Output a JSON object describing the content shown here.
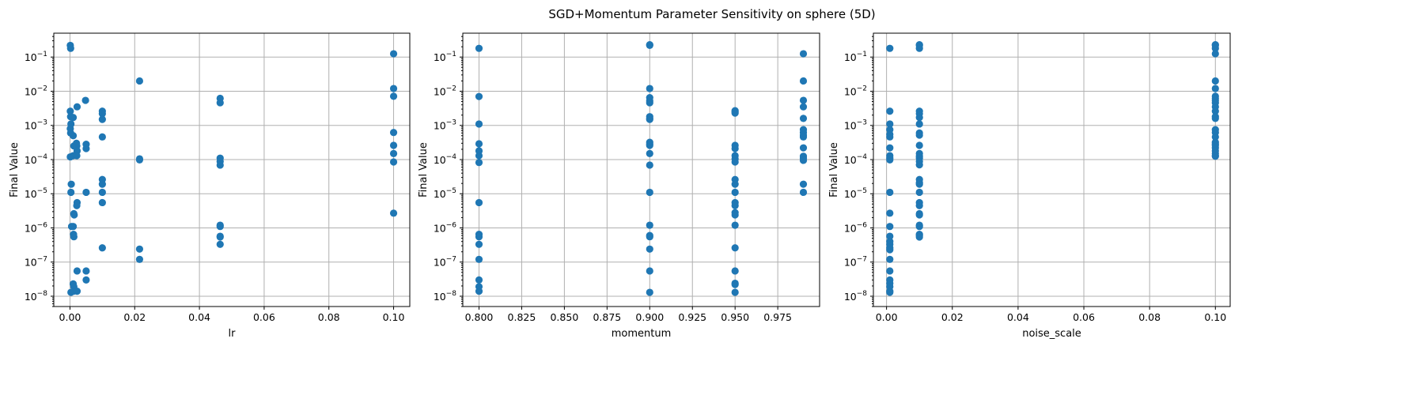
{
  "figure": {
    "title": "SGD+Momentum Parameter Sensitivity on sphere (5D)",
    "point_color": "#1f77b4",
    "grid": true
  },
  "chart_data": [
    {
      "type": "scatter",
      "xlabel": "lr",
      "ylabel": "Final Value",
      "yscale": "log",
      "xlim": [
        -0.005,
        0.105
      ],
      "ylim": [
        5e-09,
        0.5
      ],
      "xticks": [
        0.0,
        0.02,
        0.04,
        0.06,
        0.08,
        0.1
      ],
      "xtick_labels": [
        "0.00",
        "0.02",
        "0.04",
        "0.06",
        "0.08",
        "0.10"
      ],
      "yticks": [
        1e-08,
        1e-07,
        1e-06,
        1e-05,
        0.0001,
        0.001,
        0.01,
        0.1
      ],
      "ytick_exponents": [
        "-8",
        "-7",
        "-6",
        "-5",
        "-4",
        "-3",
        "-2",
        "-1"
      ],
      "ytick_base": "10",
      "points": [
        [
          0.0001,
          0.22
        ],
        [
          0.0002,
          0.18
        ],
        [
          0.0001,
          0.0026
        ],
        [
          0.0002,
          0.0018
        ],
        [
          0.0003,
          0.0011
        ],
        [
          0.0001,
          0.0008
        ],
        [
          0.0002,
          0.0006
        ],
        [
          0.0001,
          0.00012
        ],
        [
          0.0004,
          1.9e-05
        ],
        [
          0.0003,
          1.1e-05
        ],
        [
          0.0005,
          1.1e-06
        ],
        [
          0.0003,
          1.3e-08
        ],
        [
          0.001,
          0.0017
        ],
        [
          0.001,
          0.0005
        ],
        [
          0.0012,
          0.00025
        ],
        [
          0.001,
          0.00013
        ],
        [
          0.0012,
          2.6e-06
        ],
        [
          0.0013,
          2.4e-06
        ],
        [
          0.001,
          1.1e-06
        ],
        [
          0.0011,
          6.5e-07
        ],
        [
          0.0012,
          5.5e-07
        ],
        [
          0.001,
          2.3e-08
        ],
        [
          0.0012,
          1.9e-08
        ],
        [
          0.0011,
          1.4e-08
        ],
        [
          0.0022,
          0.0035
        ],
        [
          0.002,
          0.0003
        ],
        [
          0.0021,
          0.00025
        ],
        [
          0.0022,
          0.00018
        ],
        [
          0.0021,
          0.00013
        ],
        [
          0.0022,
          5.5e-06
        ],
        [
          0.0021,
          4.5e-06
        ],
        [
          0.0022,
          5.5e-08
        ],
        [
          0.0022,
          1.4e-08
        ],
        [
          0.0048,
          0.0054
        ],
        [
          0.005,
          0.00028
        ],
        [
          0.005,
          0.00021
        ],
        [
          0.005,
          1.1e-05
        ],
        [
          0.005,
          5.5e-08
        ],
        [
          0.005,
          3e-08
        ],
        [
          0.01,
          0.0026
        ],
        [
          0.01,
          0.0022
        ],
        [
          0.01,
          0.0015
        ],
        [
          0.01,
          0.00046
        ],
        [
          0.01,
          2.6e-05
        ],
        [
          0.01,
          1.9e-05
        ],
        [
          0.01,
          1.1e-05
        ],
        [
          0.01,
          5.5e-06
        ],
        [
          0.01,
          2.6e-07
        ],
        [
          0.0215,
          0.02
        ],
        [
          0.0215,
          0.000105
        ],
        [
          0.0215,
          9.8e-05
        ],
        [
          0.0215,
          2.4e-07
        ],
        [
          0.0215,
          1.2e-07
        ],
        [
          0.0464,
          0.0062
        ],
        [
          0.0464,
          0.0046
        ],
        [
          0.0464,
          0.00011
        ],
        [
          0.0464,
          8.8e-05
        ],
        [
          0.0464,
          6.9e-05
        ],
        [
          0.0464,
          1.2e-06
        ],
        [
          0.0464,
          1.1e-06
        ],
        [
          0.0464,
          5.7e-07
        ],
        [
          0.0464,
          5.4e-07
        ],
        [
          0.0464,
          3.3e-07
        ],
        [
          0.1,
          0.125
        ],
        [
          0.1,
          0.012
        ],
        [
          0.1,
          0.0071
        ],
        [
          0.1,
          0.00062
        ],
        [
          0.1,
          0.00026
        ],
        [
          0.1,
          0.00015
        ],
        [
          0.1,
          8.5e-05
        ],
        [
          0.1,
          2.7e-06
        ]
      ]
    },
    {
      "type": "scatter",
      "xlabel": "momentum",
      "ylabel": "Final Value",
      "yscale": "log",
      "xlim": [
        0.7905,
        0.9995
      ],
      "ylim": [
        5e-09,
        0.5
      ],
      "xticks": [
        0.8,
        0.825,
        0.85,
        0.875,
        0.9,
        0.925,
        0.95,
        0.975
      ],
      "xtick_labels": [
        "0.800",
        "0.825",
        "0.850",
        "0.875",
        "0.900",
        "0.925",
        "0.950",
        "0.975"
      ],
      "yticks": [
        1e-08,
        1e-07,
        1e-06,
        1e-05,
        0.0001,
        0.001,
        0.01,
        0.1
      ],
      "ytick_exponents": [
        "-8",
        "-7",
        "-6",
        "-5",
        "-4",
        "-3",
        "-2",
        "-1"
      ],
      "ytick_base": "10",
      "points": [
        [
          0.8,
          0.18
        ],
        [
          0.8,
          0.007
        ],
        [
          0.8,
          0.0011
        ],
        [
          0.8,
          0.00029
        ],
        [
          0.8,
          0.00018
        ],
        [
          0.8,
          0.00013
        ],
        [
          0.8,
          8.2e-05
        ],
        [
          0.8,
          5.5e-06
        ],
        [
          0.8,
          6.5e-07
        ],
        [
          0.8,
          5.5e-07
        ],
        [
          0.8,
          3.3e-07
        ],
        [
          0.8,
          1.2e-07
        ],
        [
          0.8,
          3e-08
        ],
        [
          0.8,
          1.9e-08
        ],
        [
          0.8,
          1.4e-08
        ],
        [
          0.9,
          0.23
        ],
        [
          0.9,
          0.22
        ],
        [
          0.9,
          0.012
        ],
        [
          0.9,
          0.0065
        ],
        [
          0.9,
          0.0052
        ],
        [
          0.9,
          0.0046
        ],
        [
          0.9,
          0.0018
        ],
        [
          0.9,
          0.0016
        ],
        [
          0.9,
          0.0015
        ],
        [
          0.9,
          0.00032
        ],
        [
          0.9,
          0.00028
        ],
        [
          0.9,
          0.00026
        ],
        [
          0.9,
          0.00015
        ],
        [
          0.9,
          6.9e-05
        ],
        [
          0.9,
          1.1e-05
        ],
        [
          0.9,
          1.2e-06
        ],
        [
          0.9,
          6e-07
        ],
        [
          0.9,
          5.5e-07
        ],
        [
          0.9,
          2.4e-07
        ],
        [
          0.9,
          5.5e-08
        ],
        [
          0.9,
          1.3e-08
        ],
        [
          0.95,
          0.0027
        ],
        [
          0.95,
          0.0025
        ],
        [
          0.95,
          0.0023
        ],
        [
          0.95,
          0.00026
        ],
        [
          0.95,
          0.00021
        ],
        [
          0.95,
          0.00013
        ],
        [
          0.95,
          0.000105
        ],
        [
          0.95,
          8.5e-05
        ],
        [
          0.95,
          2.6e-05
        ],
        [
          0.95,
          1.9e-05
        ],
        [
          0.95,
          1.1e-05
        ],
        [
          0.95,
          5.5e-06
        ],
        [
          0.95,
          4.5e-06
        ],
        [
          0.95,
          2.8e-06
        ],
        [
          0.95,
          2.4e-06
        ],
        [
          0.95,
          1.2e-06
        ],
        [
          0.95,
          2.6e-07
        ],
        [
          0.95,
          5.5e-08
        ],
        [
          0.95,
          2.4e-08
        ],
        [
          0.95,
          2.2e-08
        ],
        [
          0.95,
          1.3e-08
        ],
        [
          0.99,
          0.125
        ],
        [
          0.99,
          0.02
        ],
        [
          0.99,
          0.0054
        ],
        [
          0.99,
          0.0035
        ],
        [
          0.99,
          0.0016
        ],
        [
          0.99,
          0.00075
        ],
        [
          0.99,
          0.00062
        ],
        [
          0.99,
          0.00052
        ],
        [
          0.99,
          0.00046
        ],
        [
          0.99,
          0.00022
        ],
        [
          0.99,
          0.000125
        ],
        [
          0.99,
          0.00011
        ],
        [
          0.99,
          9.5e-05
        ],
        [
          0.99,
          1.9e-05
        ],
        [
          0.99,
          1.1e-05
        ]
      ]
    },
    {
      "type": "scatter",
      "xlabel": "noise_scale",
      "ylabel": "Final Value",
      "yscale": "log",
      "xlim": [
        -0.004,
        0.1045
      ],
      "ylim": [
        5e-09,
        0.5
      ],
      "xticks": [
        0.0,
        0.02,
        0.04,
        0.06,
        0.08,
        0.1
      ],
      "xtick_labels": [
        "0.00",
        "0.02",
        "0.04",
        "0.06",
        "0.08",
        "0.10"
      ],
      "yticks": [
        1e-08,
        1e-07,
        1e-06,
        1e-05,
        0.0001,
        0.001,
        0.01,
        0.1
      ],
      "ytick_exponents": [
        "-8",
        "-7",
        "-6",
        "-5",
        "-4",
        "-3",
        "-2",
        "-1"
      ],
      "ytick_base": "10",
      "points": [
        [
          0.001,
          0.18
        ],
        [
          0.001,
          0.0026
        ],
        [
          0.001,
          0.0011
        ],
        [
          0.001,
          0.00075
        ],
        [
          0.001,
          0.00055
        ],
        [
          0.001,
          0.00046
        ],
        [
          0.001,
          0.00022
        ],
        [
          0.001,
          0.00013
        ],
        [
          0.001,
          0.00011
        ],
        [
          0.001,
          9.8e-05
        ],
        [
          0.001,
          1.1e-05
        ],
        [
          0.001,
          2.7e-06
        ],
        [
          0.001,
          1.1e-06
        ],
        [
          0.001,
          5.7e-07
        ],
        [
          0.001,
          4e-07
        ],
        [
          0.001,
          3.3e-07
        ],
        [
          0.001,
          2.6e-07
        ],
        [
          0.001,
          2.3e-07
        ],
        [
          0.001,
          1.2e-07
        ],
        [
          0.001,
          5.5e-08
        ],
        [
          0.001,
          3e-08
        ],
        [
          0.001,
          2.4e-08
        ],
        [
          0.001,
          1.9e-08
        ],
        [
          0.001,
          1.4e-08
        ],
        [
          0.001,
          1.3e-08
        ],
        [
          0.01,
          0.23
        ],
        [
          0.01,
          0.22
        ],
        [
          0.01,
          0.18
        ],
        [
          0.01,
          0.0026
        ],
        [
          0.01,
          0.0022
        ],
        [
          0.01,
          0.0017
        ],
        [
          0.01,
          0.0011
        ],
        [
          0.01,
          0.0006
        ],
        [
          0.01,
          0.00052
        ],
        [
          0.01,
          0.00026
        ],
        [
          0.01,
          0.00015
        ],
        [
          0.01,
          0.000125
        ],
        [
          0.01,
          0.00011
        ],
        [
          0.01,
          8.8e-05
        ],
        [
          0.01,
          7e-05
        ],
        [
          0.01,
          2.6e-05
        ],
        [
          0.01,
          2.1e-05
        ],
        [
          0.01,
          1.9e-05
        ],
        [
          0.01,
          1.1e-05
        ],
        [
          0.01,
          5.5e-06
        ],
        [
          0.01,
          4.5e-06
        ],
        [
          0.01,
          2.6e-06
        ],
        [
          0.01,
          2.4e-06
        ],
        [
          0.01,
          1.2e-06
        ],
        [
          0.01,
          1.1e-06
        ],
        [
          0.01,
          6.5e-07
        ],
        [
          0.01,
          6e-07
        ],
        [
          0.01,
          5.4e-07
        ],
        [
          0.1,
          0.23
        ],
        [
          0.1,
          0.22
        ],
        [
          0.1,
          0.18
        ],
        [
          0.1,
          0.125
        ],
        [
          0.1,
          0.02
        ],
        [
          0.1,
          0.012
        ],
        [
          0.1,
          0.0071
        ],
        [
          0.1,
          0.0062
        ],
        [
          0.1,
          0.0054
        ],
        [
          0.1,
          0.0046
        ],
        [
          0.1,
          0.0035
        ],
        [
          0.1,
          0.0026
        ],
        [
          0.1,
          0.0018
        ],
        [
          0.1,
          0.0016
        ],
        [
          0.1,
          0.00075
        ],
        [
          0.1,
          0.00062
        ],
        [
          0.1,
          0.00046
        ],
        [
          0.1,
          0.00032
        ],
        [
          0.1,
          0.00028
        ],
        [
          0.1,
          0.00026
        ],
        [
          0.1,
          0.00022
        ],
        [
          0.1,
          0.00018
        ],
        [
          0.1,
          0.00015
        ],
        [
          0.1,
          0.00013
        ],
        [
          0.1,
          0.000125
        ]
      ]
    }
  ]
}
